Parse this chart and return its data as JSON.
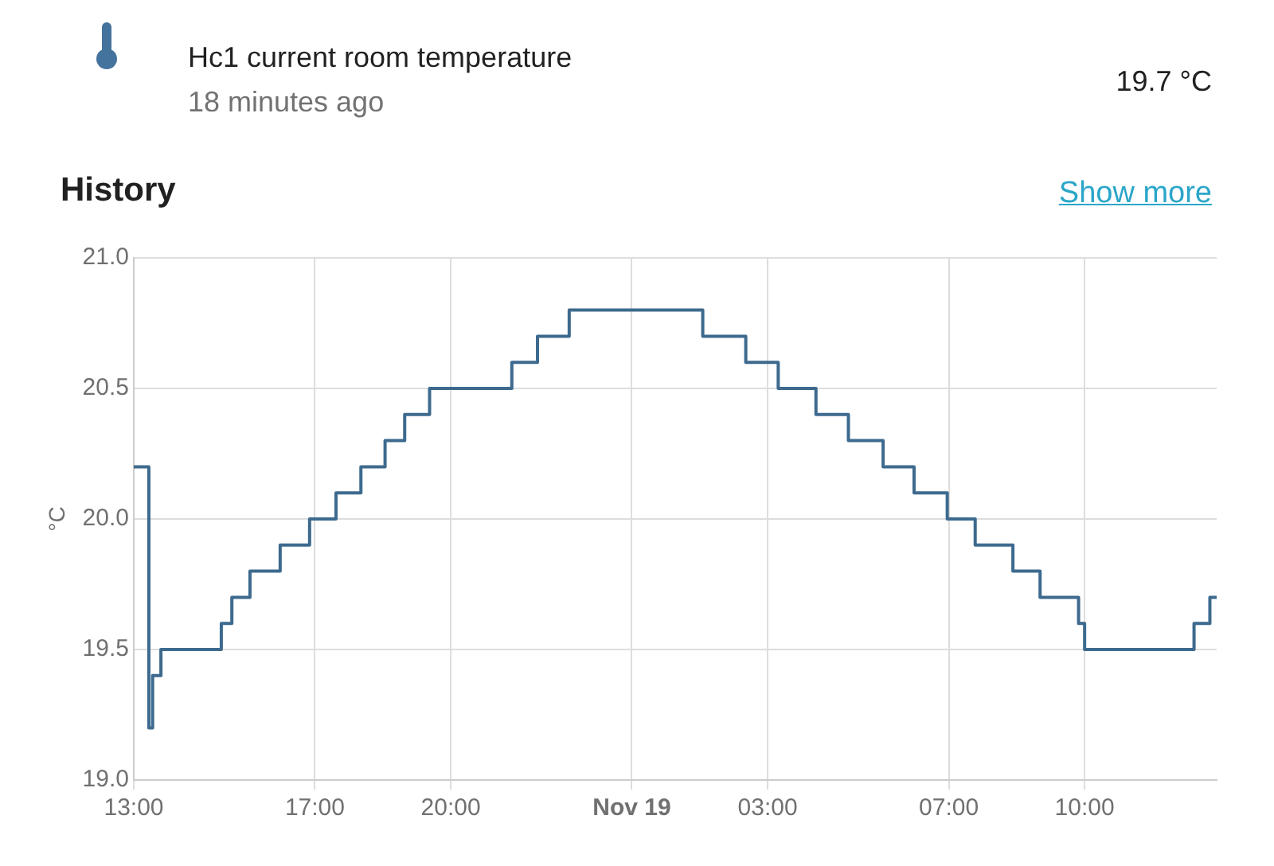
{
  "chart_data": {
    "type": "step",
    "title": "Hc1 current room temperature",
    "subtitle": "18 minutes ago",
    "annotations": [
      "19.7 °C",
      "History",
      "Show more"
    ],
    "ylabel": "°C",
    "x": [
      "--11-18T13:00",
      "--11-18T13:09",
      "--11-18T13:20",
      "--11-18T13:25",
      "--11-18T13:36",
      "--11-18T14:56",
      "--11-18T15:10",
      "--11-18T15:34",
      "--11-18T16:14",
      "--11-18T16:53",
      "--11-18T17:28",
      "--11-18T18:01",
      "--11-18T18:33",
      "--11-18T18:59",
      "--11-18T19:32",
      "--11-18T21:21",
      "--11-18T21:55",
      "--11-18T22:37",
      "--11-19T01:34",
      "--11-19T02:31",
      "--11-19T03:14",
      "--11-19T04:04",
      "--11-19T04:47",
      "--11-19T05:33",
      "--11-19T06:14",
      "--11-19T06:58",
      "--11-19T07:35",
      "--11-19T08:25",
      "--11-19T09:01",
      "--11-19T09:52",
      "--11-19T10:00",
      "--11-19T12:25",
      "--11-19T12:46",
      "--11-19T12:55"
    ],
    "series": [
      {
        "color": "#3d6a8e",
        "values": [
          20.2,
          20.2,
          19.2,
          19.4,
          19.5,
          19.6,
          19.7,
          19.8,
          19.9,
          20.0,
          20.1,
          20.2,
          20.3,
          20.4,
          20.5,
          20.6,
          20.7,
          20.8,
          20.7,
          20.6,
          20.5,
          20.4,
          20.3,
          20.2,
          20.1,
          20.0,
          19.9,
          19.8,
          19.7,
          19.6,
          19.5,
          19.6,
          19.7,
          19.7
        ]
      }
    ],
    "xlim": [
      "--11-18T13:00",
      "--11-19T12:55"
    ],
    "xticks": [
      {
        "value": "--11-18T13:00",
        "label": "13:00"
      },
      {
        "value": "--11-18T17:00",
        "label": "17:00"
      },
      {
        "value": "--11-18T20:00",
        "label": "20:00"
      },
      {
        "value": "--11-19T00:00",
        "label": "Nov 19"
      },
      {
        "value": "--11-19T03:00",
        "label": "03:00"
      },
      {
        "value": "--11-19T07:00",
        "label": "07:00"
      },
      {
        "value": "--11-19T10:00",
        "label": "10:00"
      }
    ],
    "ylim": [
      19,
      21
    ],
    "yticks": [
      {
        "value": 19,
        "label": "19.0"
      },
      19.5,
      {
        "value": 20,
        "label": "20.0"
      },
      20.5,
      {
        "value": 21,
        "label": "21.0"
      }
    ],
    "grid": true
  }
}
